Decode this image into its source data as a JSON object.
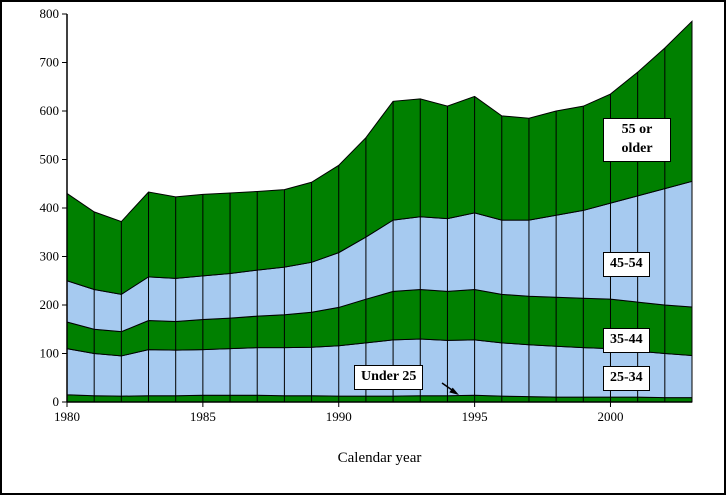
{
  "chart_data": {
    "type": "area",
    "stacked": true,
    "title": "",
    "xlabel": "Calendar year",
    "ylabel": "",
    "x": [
      1980,
      1981,
      1982,
      1983,
      1984,
      1985,
      1986,
      1987,
      1988,
      1989,
      1990,
      1991,
      1992,
      1993,
      1994,
      1995,
      1996,
      1997,
      1998,
      1999,
      2000,
      2001,
      2002,
      2003
    ],
    "x_ticks": [
      1980,
      1985,
      1990,
      1995,
      2000
    ],
    "ylim": [
      0,
      800
    ],
    "y_tick_step": 100,
    "legend_position": "none",
    "grid": "vertical category lines drawn only inside stacked area",
    "colors": {
      "green": "#008000",
      "light_blue": "#A6CAF0",
      "axis": "#000000",
      "background": "#FFFFFF"
    },
    "series": [
      {
        "name": "Under 25",
        "color": "#008000",
        "values": [
          15,
          13,
          12,
          13,
          13,
          14,
          14,
          14,
          13,
          13,
          12,
          12,
          12,
          13,
          13,
          14,
          12,
          11,
          10,
          10,
          10,
          10,
          9,
          9
        ]
      },
      {
        "name": "25-34",
        "color": "#A6CAF0",
        "values": [
          95,
          87,
          83,
          95,
          94,
          94,
          96,
          98,
          99,
          100,
          104,
          110,
          116,
          117,
          114,
          114,
          110,
          107,
          105,
          102,
          100,
          95,
          91,
          87
        ]
      },
      {
        "name": "35-44",
        "color": "#008000",
        "values": [
          55,
          50,
          50,
          60,
          59,
          62,
          63,
          65,
          68,
          72,
          79,
          90,
          100,
          102,
          101,
          104,
          100,
          100,
          101,
          102,
          102,
          101,
          100,
          100
        ]
      },
      {
        "name": "45-54",
        "color": "#A6CAF0",
        "values": [
          85,
          82,
          77,
          90,
          89,
          90,
          92,
          95,
          98,
          103,
          113,
          128,
          147,
          150,
          150,
          158,
          153,
          157,
          169,
          181,
          198,
          219,
          240,
          259
        ]
      },
      {
        "name": "55 or older",
        "color": "#008000",
        "values": [
          180,
          160,
          150,
          175,
          168,
          168,
          166,
          162,
          160,
          165,
          180,
          205,
          245,
          243,
          232,
          240,
          215,
          210,
          215,
          215,
          225,
          255,
          290,
          330
        ]
      }
    ],
    "annotations": [
      {
        "label": "55 or older"
      },
      {
        "label": "45-54"
      },
      {
        "label": "35-44"
      },
      {
        "label": "25-34"
      },
      {
        "label": "Under 25",
        "arrow": true
      }
    ]
  }
}
